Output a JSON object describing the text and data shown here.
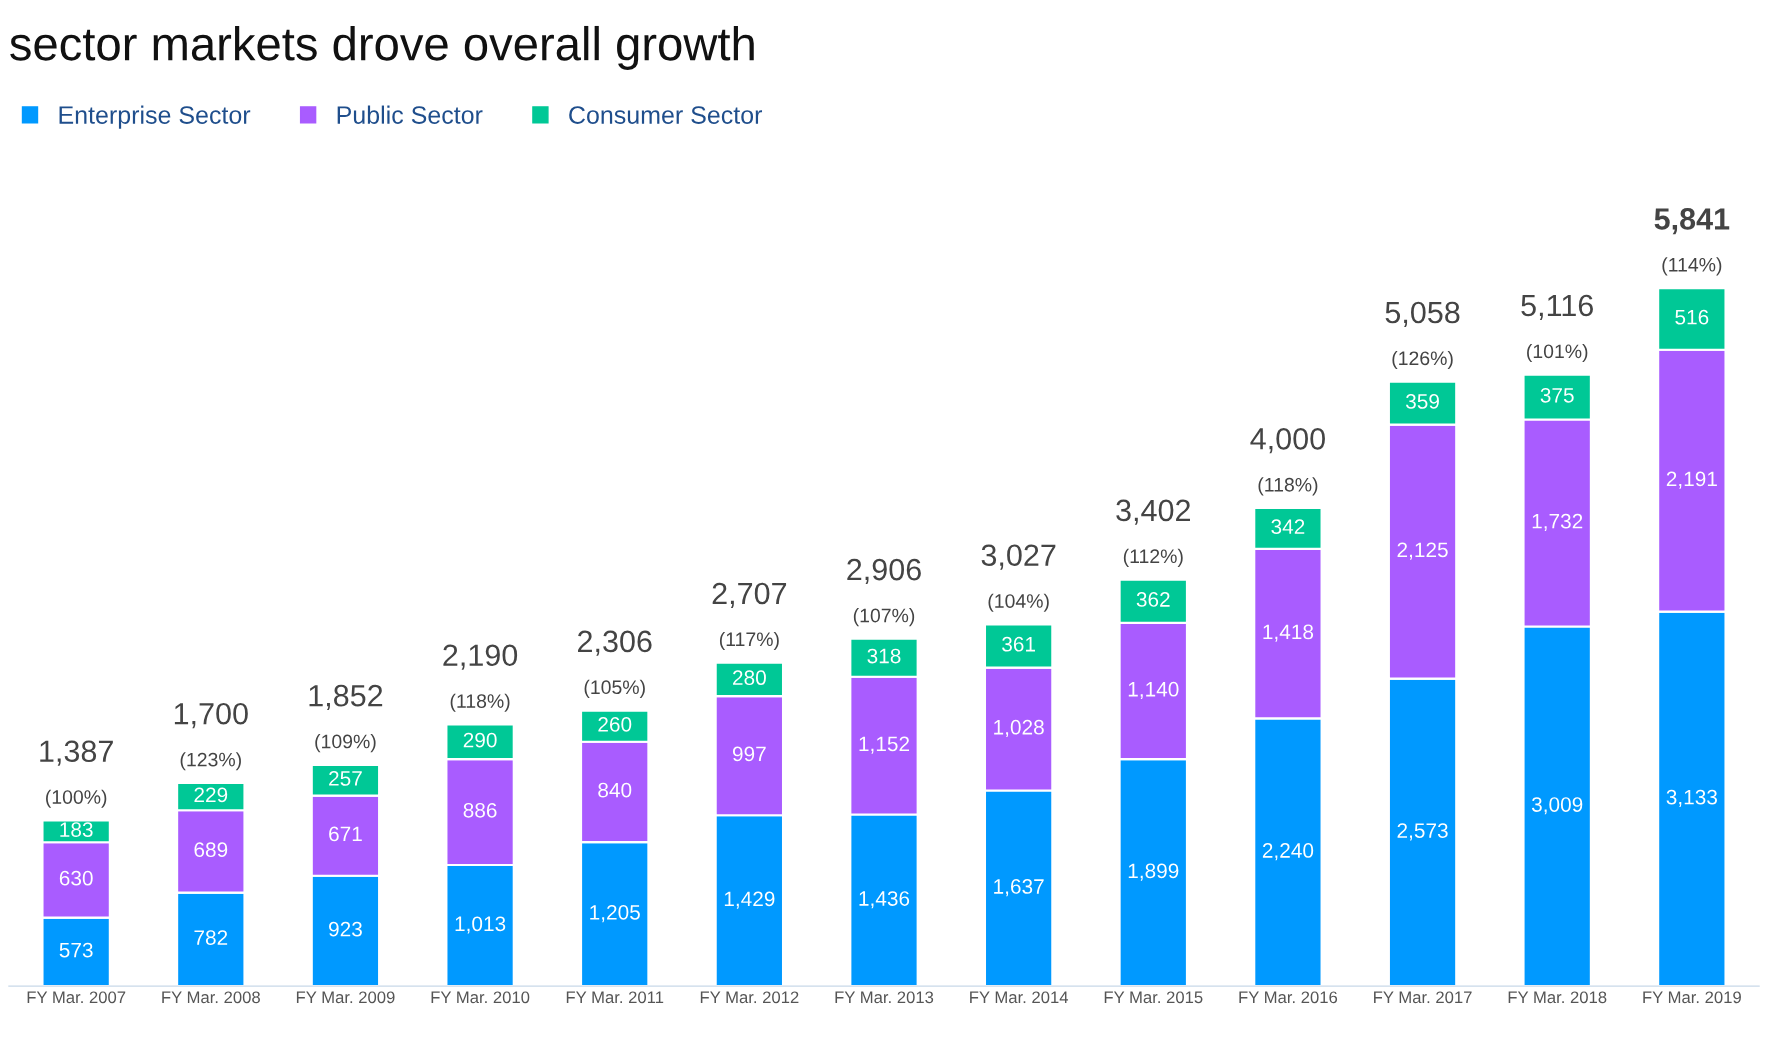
{
  "chart_data": {
    "type": "bar",
    "stacked": true,
    "title": "sector markets drove overall growth",
    "data_labels": false,
    "legend": "top left",
    "grid": false,
    "categories": [
      "FY Mar. 2007",
      "FY Mar. 2008",
      "FY Mar. 2009",
      "FY Mar. 2010",
      "FY Mar. 2011",
      "FY Mar. 2012",
      "FY Mar. 2013",
      "FY Mar. 2014",
      "FY Mar. 2015",
      "FY Mar. 2016",
      "FY Mar. 2017",
      "FY Mar. 2018",
      "FY Mar. 2019"
    ],
    "series": [
      {
        "name": "Enterprise Sector",
        "color": "#0099ff",
        "values": [
          573,
          782,
          923,
          1013,
          1205,
          1429,
          1436,
          1637,
          1899,
          2240,
          2573,
          3009,
          3133
        ],
        "value_labels": [
          "573",
          "782",
          "923",
          "1,013",
          "1,205",
          "1,429",
          "1,436",
          "1,637",
          "1,899",
          "2,240",
          "2,573",
          "3,009",
          "3,133"
        ]
      },
      {
        "name": "Public Sector",
        "color": "#a95cff",
        "values": [
          630,
          689,
          671,
          886,
          840,
          997,
          1152,
          1028,
          1140,
          1418,
          2125,
          1732,
          2191
        ],
        "value_labels": [
          "630",
          "689",
          "671",
          "886",
          "840",
          "997",
          "1,152",
          "1,028",
          "1,140",
          "1,418",
          "2,125",
          "1,732",
          "2,191"
        ]
      },
      {
        "name": "Consumer Sector",
        "color": "#00c896",
        "values": [
          183,
          229,
          257,
          290,
          260,
          280,
          318,
          361,
          362,
          342,
          359,
          375,
          516
        ],
        "value_labels": [
          "183",
          "229",
          "257",
          "290",
          "260",
          "280",
          "318",
          "361",
          "362",
          "342",
          "359",
          "375",
          "516"
        ]
      }
    ],
    "totals": [
      "1,387",
      "1,700",
      "1,852",
      "2,190",
      "2,306",
      "2,707",
      "2,906",
      "3,027",
      "3,402",
      "4,000",
      "5,058",
      "5,116",
      "5,841"
    ],
    "annotations": [
      {
        "text": "(100%)",
        "x": "FY Mar. 2007",
        "y": 1387
      },
      {
        "text": "(123%)",
        "x": "FY Mar. 2008",
        "y": 1700
      },
      {
        "text": "(109%)",
        "x": "FY Mar. 2009",
        "y": 1852
      },
      {
        "text": "(118%)",
        "x": "FY Mar. 2010",
        "y": 2190
      },
      {
        "text": "(105%)",
        "x": "FY Mar. 2011",
        "y": 2306
      },
      {
        "text": "(117%)",
        "x": "FY Mar. 2012",
        "y": 2707
      },
      {
        "text": "(107%)",
        "x": "FY Mar. 2013",
        "y": 2906
      },
      {
        "text": "(104%)",
        "x": "FY Mar. 2014",
        "y": 3027
      },
      {
        "text": "(112%)",
        "x": "FY Mar. 2015",
        "y": 3402
      },
      {
        "text": "(118%)",
        "x": "FY Mar. 2016",
        "y": 4000
      },
      {
        "text": "(126%)",
        "x": "FY Mar. 2017",
        "y": 5058
      },
      {
        "text": "(101%)",
        "x": "FY Mar. 2018",
        "y": 5116
      },
      {
        "text": "(114%)",
        "x": "FY Mar. 2019",
        "y": 5841
      }
    ]
  }
}
